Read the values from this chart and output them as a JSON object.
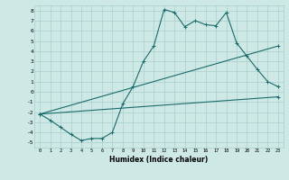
{
  "xlabel": "Humidex (Indice chaleur)",
  "bg_color": "#cde8e5",
  "grid_color": "#aacfcc",
  "line_color": "#1a6b6b",
  "xlim": [
    -0.5,
    23.5
  ],
  "ylim": [
    -5.5,
    8.5
  ],
  "xticks": [
    0,
    1,
    2,
    3,
    4,
    5,
    6,
    7,
    8,
    9,
    10,
    11,
    12,
    13,
    14,
    15,
    16,
    17,
    18,
    19,
    20,
    21,
    22,
    23
  ],
  "yticks": [
    -5,
    -4,
    -3,
    -2,
    -1,
    0,
    1,
    2,
    3,
    4,
    5,
    6,
    7,
    8
  ],
  "line1_x": [
    0,
    1,
    2,
    3,
    4,
    5,
    6,
    7,
    8,
    9,
    10,
    11,
    12,
    13,
    14,
    15,
    16,
    17,
    18,
    19,
    20,
    21,
    22,
    23
  ],
  "line1_y": [
    -2.2,
    -2.8,
    -3.5,
    -4.2,
    -4.8,
    -4.6,
    -4.6,
    -4.0,
    -1.2,
    0.5,
    3.0,
    4.5,
    8.1,
    7.8,
    6.4,
    7.0,
    6.6,
    6.5,
    7.8,
    4.8,
    3.5,
    2.2,
    1.0,
    0.5
  ],
  "line2_x": [
    0,
    23
  ],
  "line2_y": [
    -2.2,
    4.5
  ],
  "line3_x": [
    0,
    23
  ],
  "line3_y": [
    -2.2,
    -0.5
  ],
  "marker": "+"
}
